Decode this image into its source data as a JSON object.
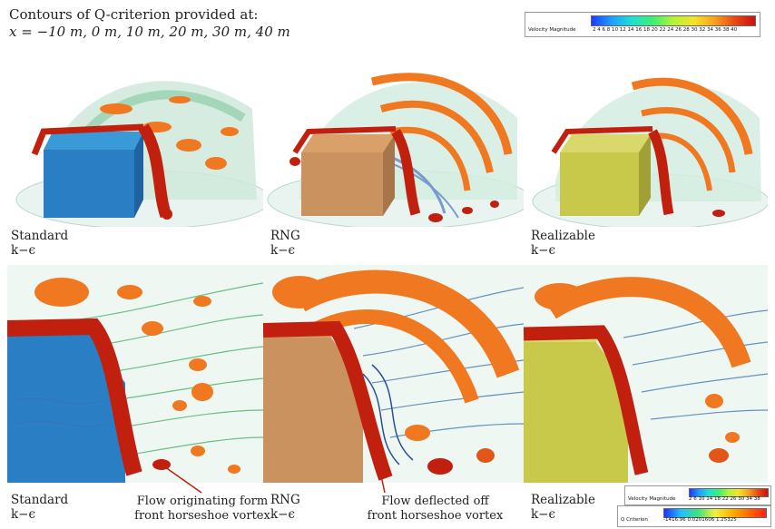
{
  "title": {
    "line1": "Contours of Q-criterion provided at:",
    "line2": "x = −10 m, 0 m, 10 m, 20 m, 30 m, 40 m"
  },
  "legend_top": {
    "label": "Velocity Magnitude",
    "ticks": "2  4  6  8  10 12 14 16 18 20 22 24 26 28 30 32 34 36 38 40"
  },
  "legend_bottom": {
    "velocity_label": "Velocity Magnitude",
    "velocity_ticks": "2  6  10 14 18 22 26 30 34 38",
    "q_label": "Q Criterion",
    "q_ticks": "-1416.96  0.0201606  1.25325"
  },
  "captions": {
    "top_standard": [
      "Standard",
      "k−ϵ"
    ],
    "top_rng": [
      "RNG",
      "k−ϵ"
    ],
    "top_realizable": [
      "Realizable",
      "k−ϵ"
    ],
    "bottom_standard": [
      "Standard",
      "k−ϵ"
    ],
    "bottom_rng": [
      "RNG",
      "k−ϵ"
    ],
    "bottom_realizable": [
      "Realizable",
      "k−ϵ"
    ]
  },
  "annotations": {
    "left": [
      "Flow originating form",
      "front horseshoe vortex"
    ],
    "right": [
      "Flow deflected off",
      "front horseshoe vortex"
    ]
  },
  "colors": {
    "standard_body": "#2a7fc4",
    "rng_body": "#c9925f",
    "realizable_body": "#c8c84a",
    "vortex_orange": "#f07820",
    "vortex_red": "#c2200e",
    "streamline_green": "#4bb06a",
    "streamline_blue": "#3a6fb0"
  }
}
